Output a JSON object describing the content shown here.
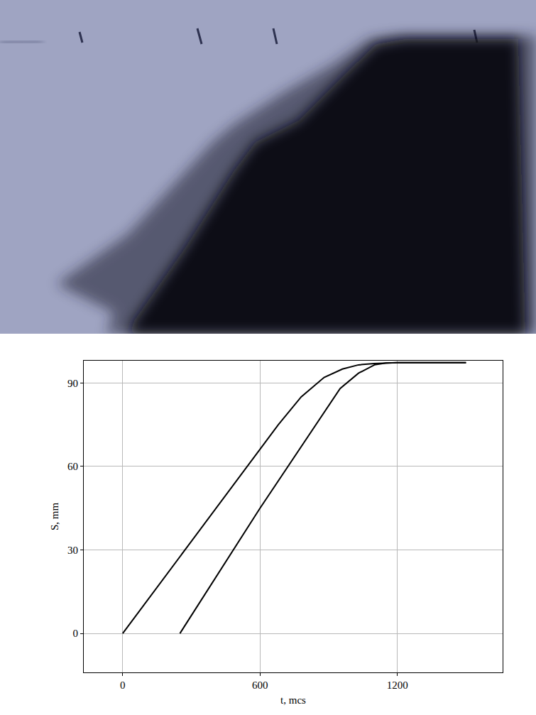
{
  "chart_data": {
    "type": "line",
    "x_label": "t, mcs",
    "y_label": "S, mm",
    "xlim": [
      -170,
      1660
    ],
    "xticks": [
      0,
      600,
      1200
    ],
    "ylim": [
      -14,
      98
    ],
    "yticks": [
      0,
      30,
      60,
      90
    ],
    "grid": true,
    "series": [
      {
        "color": "#000000",
        "x": [
          0,
          300,
          600,
          680,
          780,
          880,
          960,
          1030,
          1100,
          1200,
          1500
        ],
        "values": [
          0,
          33,
          66,
          75,
          85,
          92,
          95,
          96.5,
          97,
          97.3,
          97.3
        ]
      },
      {
        "color": "#000000",
        "x": [
          250,
          600,
          950,
          1030,
          1100,
          1150,
          1200,
          1500
        ],
        "values": [
          0,
          45,
          88,
          93.5,
          96.5,
          97.2,
          97.3,
          97.3
        ]
      }
    ]
  }
}
